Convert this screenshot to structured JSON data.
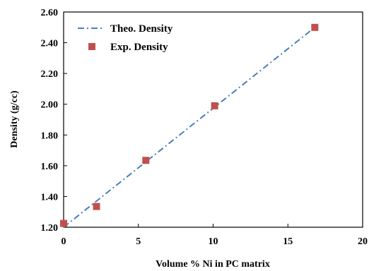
{
  "chart_data": {
    "type": "scatter",
    "title": "",
    "xlabel": "Volume % Ni in PC matrix",
    "ylabel": "Density (g/cc)",
    "xlim": [
      0,
      20
    ],
    "ylim": [
      1.2,
      2.6
    ],
    "x_ticks": [
      0,
      5,
      10,
      15,
      20
    ],
    "x_tick_labels": [
      "0",
      "5",
      "10",
      "15",
      "20"
    ],
    "y_ticks": [
      1.2,
      1.4,
      1.6,
      1.8,
      2.0,
      2.2,
      2.4,
      2.6
    ],
    "y_tick_labels": [
      "1.20",
      "1.40",
      "1.60",
      "1.80",
      "2.00",
      "2.20",
      "2.40",
      "2.60"
    ],
    "grid": false,
    "legend_position": "top-left",
    "series": [
      {
        "name": "Theo. Density",
        "kind": "line",
        "line_style": "dash-dot",
        "color": "#4a7ebb",
        "x": [
          0,
          16.8
        ],
        "y": [
          1.2,
          2.5
        ]
      },
      {
        "name": "Exp. Density",
        "kind": "markers",
        "marker": "square",
        "color": "#c0504d",
        "x": [
          0,
          2.2,
          5.5,
          10.1,
          16.8
        ],
        "y": [
          1.225,
          1.335,
          1.635,
          1.99,
          2.5
        ]
      }
    ]
  }
}
